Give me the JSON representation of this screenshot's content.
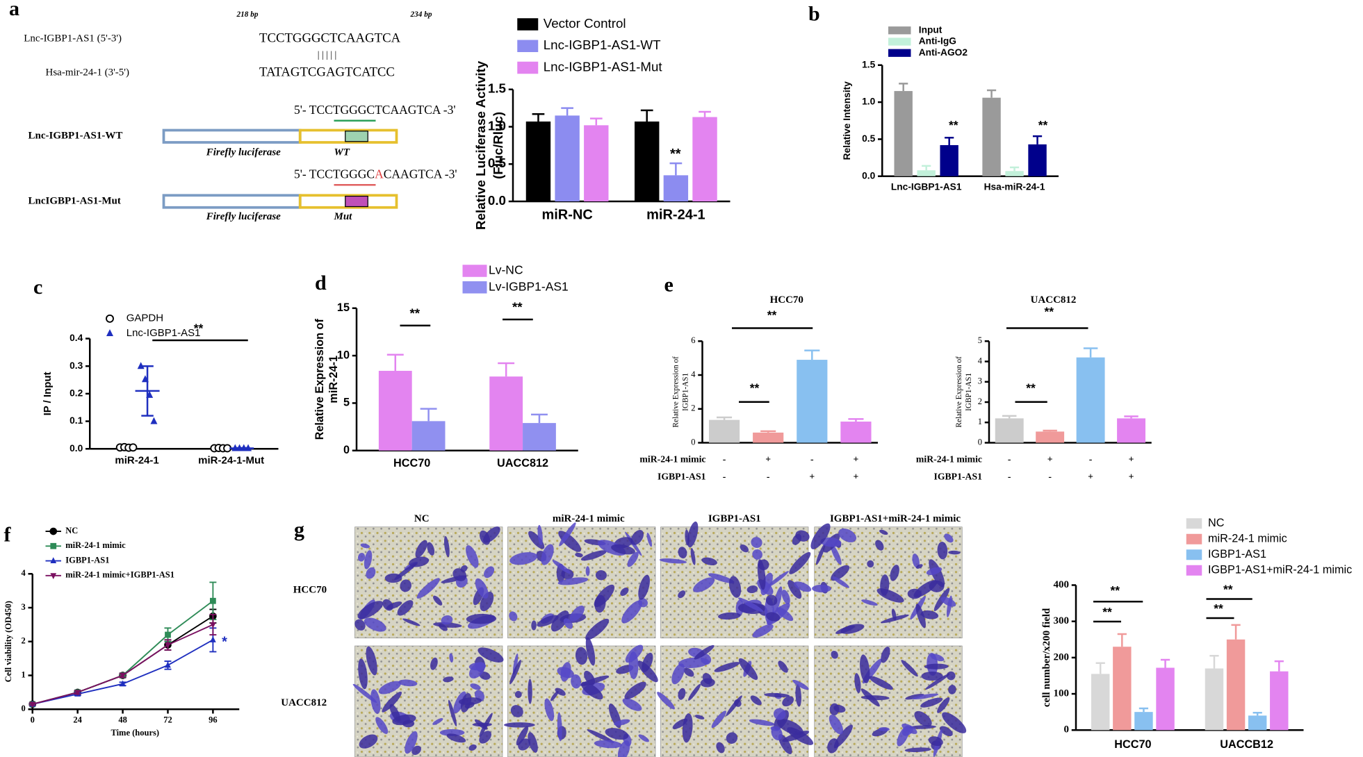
{
  "panel_labels": [
    "a",
    "b",
    "c",
    "d",
    "e",
    "f",
    "g"
  ],
  "panel_a_diagram": {
    "positions": [
      "218 bp",
      "234 bp"
    ],
    "lnc_label": "Lnc-IGBP1-AS1 (5'-3')",
    "lnc_seq": "TCCTGGGCTCAAGTCA",
    "pairing": "| | | | |",
    "mir_label": "Hsa-mir-24-1 (3'-5')",
    "mir_seq": "TATAGTCGAGTCATCC",
    "wt_seq": "5'- TCCTGGGCTCAAGTCA -3'",
    "wt_construct": "Lnc-IGBP1-AS1-WT",
    "wt_reporter": "Firefly luciferase",
    "wt_site": "WT",
    "mut_seq": [
      "5'- TCCTGGGC",
      "A",
      "CAAGTCA -3'"
    ],
    "mut_construct": "LncIGBP1-AS1-Mut",
    "mut_reporter": "Firefly luciferase",
    "mut_site": "Mut"
  },
  "panel_g_images": {
    "columns": [
      "NC",
      "miR-24-1 mimic",
      "IGBP1-AS1",
      "IGBP1-AS1+miR-24-1 mimic"
    ],
    "rows": [
      "HCC70",
      "UACC812"
    ]
  },
  "chart_data": [
    {
      "type": "bar",
      "ylabel": [
        "Relative Luciferase Activity",
        "(Fluc/Rluc)"
      ],
      "categories": [
        "miR-NC",
        "miR-24-1"
      ],
      "series": [
        {
          "name": "Vector Control",
          "color": "#000000",
          "values": [
            1.07,
            1.07
          ],
          "errors": [
            0.1,
            0.15
          ]
        },
        {
          "name": "Lnc-IGBP1-AS1-WT",
          "color": "#8c8cf0",
          "values": [
            1.15,
            0.35
          ],
          "errors": [
            0.1,
            0.16
          ]
        },
        {
          "name": "Lnc-IGBP1-AS1-Mut",
          "color": "#e384f0",
          "values": [
            1.02,
            1.13
          ],
          "errors": [
            0.09,
            0.07
          ]
        }
      ],
      "ylim": [
        0,
        1.5
      ],
      "yticks": [
        {
          "value": 0,
          "label": "0.0"
        },
        {
          "value": 0.5,
          "label": "0.5"
        },
        {
          "value": 1,
          "label": "1.0"
        },
        {
          "value": 1.5,
          "label": "1.5"
        }
      ],
      "annotations": [
        "**"
      ]
    },
    {
      "type": "bar",
      "ylabel": "Relative Intensity",
      "categories": [
        "Lnc-IGBP1-AS1",
        "Hsa-miR-24-1"
      ],
      "series": [
        {
          "name": "Input",
          "color": "#9a9a9a",
          "values": [
            1.15,
            1.06
          ],
          "errors": [
            0.1,
            0.1
          ]
        },
        {
          "name": "Anti-IgG",
          "color": "#c2f0da",
          "values": [
            0.08,
            0.07
          ],
          "errors": [
            0.06,
            0.05
          ]
        },
        {
          "name": "Anti-AGO2",
          "color": "#00008b",
          "values": [
            0.42,
            0.43
          ],
          "errors": [
            0.1,
            0.11
          ]
        }
      ],
      "ylim": [
        0,
        1.5
      ],
      "yticks": [
        {
          "value": 0,
          "label": "0.0"
        },
        {
          "value": 0.5,
          "label": "0.5"
        },
        {
          "value": 1,
          "label": "1.0"
        },
        {
          "value": 1.5,
          "label": "1.5"
        }
      ],
      "annotations": [
        "**",
        "**"
      ]
    },
    {
      "type": "dot",
      "ylabel": "IP / Input",
      "categories": [
        "miR-24-1",
        "miR-24-1-Mut"
      ],
      "series": [
        {
          "name": "GAPDH",
          "color": "#000000",
          "marker": "circle-open",
          "values": [
            [
              0.005,
              0.006,
              0.004,
              0.005
            ],
            [
              0.002,
              0.003,
              0.002,
              0.002
            ]
          ]
        },
        {
          "name": "Lnc-IGBP1-AS1",
          "color": "#1f2fbf",
          "marker": "triangle",
          "values": [
            [
              0.3,
              0.252,
              0.195,
              0.1
            ],
            [
              0.002,
              0.002,
              0.002,
              0.002
            ]
          ],
          "means": [
            0.21,
            0.002
          ],
          "errors": [
            0.09,
            0.001
          ]
        }
      ],
      "ylim": [
        0,
        0.4
      ],
      "yticks": [
        {
          "value": 0,
          "label": "0.0"
        },
        {
          "value": 0.1,
          "label": "0.1"
        },
        {
          "value": 0.2,
          "label": "0.2"
        },
        {
          "value": 0.3,
          "label": "0.3"
        },
        {
          "value": 0.4,
          "label": "0.4"
        }
      ],
      "annotations": [
        "**"
      ]
    },
    {
      "type": "bar",
      "ylabel": [
        "Relative Expression of",
        "miR-24-1"
      ],
      "categories": [
        "HCC70",
        "UACC812"
      ],
      "series": [
        {
          "name": "Lv-NC",
          "color": "#e384f0",
          "values": [
            8.4,
            7.8
          ],
          "errors": [
            1.7,
            1.4
          ]
        },
        {
          "name": "Lv-IGBP1-AS1",
          "color": "#9090f0",
          "values": [
            3.1,
            2.9
          ],
          "errors": [
            1.3,
            0.9
          ]
        }
      ],
      "ylim": [
        0,
        15
      ],
      "yticks": [
        0,
        5,
        10,
        15
      ],
      "annotations": [
        "**",
        "**"
      ]
    },
    {
      "type": "bar",
      "title": "HCC70",
      "ylabel": [
        "Relative Expression of",
        "IGBP1-AS1"
      ],
      "categories": [
        null,
        null,
        null,
        null
      ],
      "values": [
        1.35,
        0.6,
        4.9,
        1.25
      ],
      "errors": [
        0.15,
        0.08,
        0.55,
        0.15
      ],
      "colors": [
        "#cccccc",
        "#f09a9a",
        "#88c0f0",
        "#e384f0"
      ],
      "conditions": [
        {
          "name": "miR-24-1 mimic",
          "marks": [
            "-",
            "+",
            "-",
            "+"
          ]
        },
        {
          "name": "IGBP1-AS1",
          "marks": [
            "-",
            "-",
            "+",
            "+"
          ]
        }
      ],
      "ylim": [
        0,
        6
      ],
      "yticks": [
        0,
        2,
        4,
        6
      ],
      "annotations": [
        "**",
        "**"
      ]
    },
    {
      "type": "bar",
      "title": "UACC812",
      "ylabel": [
        "Relative Expression of",
        "IGBP1-AS1"
      ],
      "categories": [
        null,
        null,
        null,
        null
      ],
      "values": [
        1.2,
        0.55,
        4.2,
        1.2
      ],
      "errors": [
        0.12,
        0.05,
        0.45,
        0.1
      ],
      "colors": [
        "#cccccc",
        "#f09a9a",
        "#88c0f0",
        "#e384f0"
      ],
      "conditions": [
        {
          "name": "miR-24-1 mimic",
          "marks": [
            "-",
            "+",
            "-",
            "+"
          ]
        },
        {
          "name": "IGBP1-AS1",
          "marks": [
            "-",
            "-",
            "+",
            "+"
          ]
        }
      ],
      "ylim": [
        0,
        5
      ],
      "yticks": [
        0,
        1,
        2,
        3,
        4,
        5
      ],
      "annotations": [
        "**",
        "**"
      ]
    },
    {
      "type": "line",
      "xlabel": "Time (hours)",
      "ylabel": "Cell viability (OD450)",
      "x": [
        0,
        24,
        48,
        72,
        96
      ],
      "series": [
        {
          "name": "NC",
          "color": "#000000",
          "marker": "circle",
          "values": [
            0.15,
            0.5,
            1.0,
            1.9,
            2.75
          ],
          "errors": [
            0.03,
            0.05,
            0.06,
            0.15,
            0.2
          ]
        },
        {
          "name": "miR-24-1 mimic",
          "color": "#2e8b57",
          "marker": "square",
          "values": [
            0.15,
            0.5,
            1.0,
            2.2,
            3.2
          ],
          "errors": [
            0.03,
            0.05,
            0.06,
            0.2,
            0.55
          ]
        },
        {
          "name": "IGBP1-AS1",
          "color": "#1f2fbf",
          "marker": "triangle",
          "values": [
            0.15,
            0.45,
            0.75,
            1.3,
            2.05
          ],
          "errors": [
            0.03,
            0.04,
            0.05,
            0.12,
            0.35
          ]
        },
        {
          "name": "miR-24-1 mimic+IGBP1-AS1",
          "color": "#7a1060",
          "marker": "triangle-down",
          "values": [
            0.15,
            0.5,
            1.0,
            1.9,
            2.5
          ],
          "errors": [
            0.03,
            0.05,
            0.06,
            0.15,
            0.3
          ]
        }
      ],
      "xlim": [
        0,
        110
      ],
      "xticks": [
        0,
        24,
        48,
        72,
        96
      ],
      "ylim": [
        0,
        4
      ],
      "yticks": [
        0,
        1,
        2,
        3,
        4
      ],
      "annotations": [
        "*"
      ]
    },
    {
      "type": "bar",
      "ylabel": "cell number/x200 field",
      "categories": [
        "HCC70",
        "UACCB12"
      ],
      "series": [
        {
          "name": "NC",
          "color": "#d8d8d8",
          "values": [
            155,
            170
          ],
          "errors": [
            30,
            35
          ]
        },
        {
          "name": "miR-24-1 mimic",
          "color": "#f09a9a",
          "values": [
            230,
            250
          ],
          "errors": [
            35,
            40
          ]
        },
        {
          "name": "IGBP1-AS1",
          "color": "#88c0f0",
          "values": [
            50,
            40
          ],
          "errors": [
            10,
            8
          ]
        },
        {
          "name": "IGBP1-AS1+miR-24-1 mimic",
          "color": "#e384f0",
          "values": [
            172,
            162
          ],
          "errors": [
            22,
            28
          ]
        }
      ],
      "ylim": [
        0,
        400
      ],
      "yticks": [
        0,
        100,
        200,
        300,
        400
      ],
      "annotations": [
        "**",
        "**",
        "**",
        "**"
      ]
    }
  ]
}
